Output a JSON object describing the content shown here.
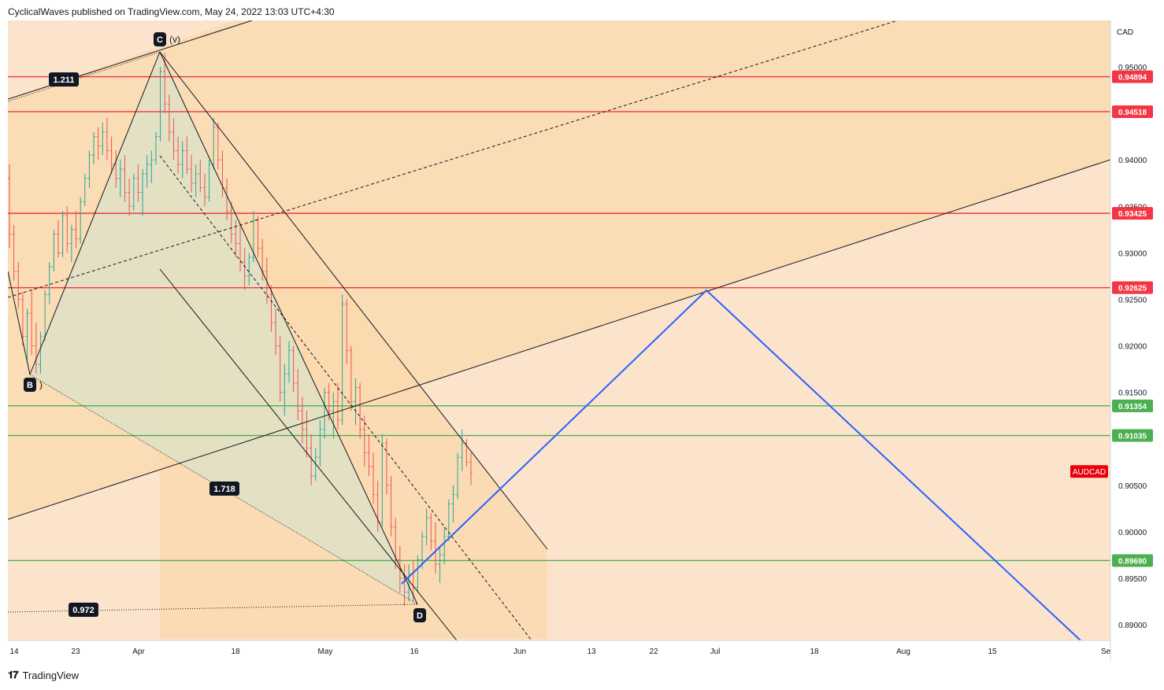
{
  "header": {
    "published_text": "CyclicalWaves published on TradingView.com, May 24, 2022 13:03 UTC+4:30"
  },
  "footer": {
    "brand": "TradingView"
  },
  "chart_data": {
    "type": "candlestick",
    "symbol": "AUDCAD",
    "currency": "CAD",
    "ylim": [
      0.887,
      0.9545
    ],
    "y_ticks": [
      0.95,
      0.94,
      0.935,
      0.93,
      0.925,
      0.92,
      0.915,
      0.905,
      0.9,
      0.895,
      0.89
    ],
    "x_ticks": [
      "14",
      "23",
      "Apr",
      "18",
      "May",
      "16",
      "Jun",
      "13",
      "22",
      "Jul",
      "18",
      "Aug",
      "15",
      "Se"
    ],
    "price_levels": [
      {
        "value": 0.94894,
        "label": "0.94894",
        "color": "#f23645"
      },
      {
        "value": 0.94518,
        "label": "0.94518",
        "color": "#f23645"
      },
      {
        "value": 0.93425,
        "label": "0.93425",
        "color": "#f23645"
      },
      {
        "value": 0.92625,
        "label": "0.92625",
        "color": "#f23645"
      },
      {
        "value": 0.91354,
        "label": "0.91354",
        "color": "#4caf50"
      },
      {
        "value": 0.91035,
        "label": "0.91035",
        "color": "#4caf50"
      },
      {
        "value": 0.8969,
        "label": "0.89690",
        "color": "#4caf50"
      }
    ],
    "symbol_price": 0.9064,
    "pattern_points": [
      {
        "label": "B",
        "note": ")"
      },
      {
        "label": "C",
        "note": "(v)"
      },
      {
        "label": "D",
        "note": ""
      }
    ],
    "fib_ratios": [
      "1.211",
      "1.718",
      "0.972"
    ],
    "projection_color": "#2962ff",
    "background_colors": {
      "light": "#fce4cc",
      "band": "#fad9ae",
      "triangle": "#dfe1c5"
    },
    "candles": [
      [
        0.938,
        0.9395,
        0.9305,
        0.932
      ],
      [
        0.932,
        0.933,
        0.927,
        0.928
      ],
      [
        0.928,
        0.929,
        0.924,
        0.925
      ],
      [
        0.925,
        0.9258,
        0.92,
        0.921
      ],
      [
        0.921,
        0.924,
        0.9185,
        0.9235
      ],
      [
        0.9235,
        0.926,
        0.919,
        0.92
      ],
      [
        0.92,
        0.9225,
        0.917,
        0.918
      ],
      [
        0.918,
        0.9215,
        0.917,
        0.921
      ],
      [
        0.921,
        0.926,
        0.9205,
        0.9255
      ],
      [
        0.9255,
        0.929,
        0.9245,
        0.9285
      ],
      [
        0.9285,
        0.9325,
        0.928,
        0.932
      ],
      [
        0.932,
        0.9335,
        0.9295,
        0.93
      ],
      [
        0.93,
        0.9345,
        0.9295,
        0.934
      ],
      [
        0.934,
        0.935,
        0.93,
        0.931
      ],
      [
        0.931,
        0.933,
        0.929,
        0.9325
      ],
      [
        0.9325,
        0.9345,
        0.9305,
        0.9315
      ],
      [
        0.9315,
        0.936,
        0.931,
        0.9355
      ],
      [
        0.9355,
        0.9385,
        0.935,
        0.938
      ],
      [
        0.938,
        0.941,
        0.937,
        0.9405
      ],
      [
        0.9405,
        0.943,
        0.9395,
        0.9425
      ],
      [
        0.9425,
        0.9435,
        0.94,
        0.9415
      ],
      [
        0.9415,
        0.944,
        0.9405,
        0.943
      ],
      [
        0.943,
        0.9445,
        0.94,
        0.941
      ],
      [
        0.941,
        0.9425,
        0.9385,
        0.9395
      ],
      [
        0.9395,
        0.941,
        0.937,
        0.938
      ],
      [
        0.938,
        0.94,
        0.936,
        0.939
      ],
      [
        0.939,
        0.9405,
        0.9355,
        0.9365
      ],
      [
        0.9365,
        0.938,
        0.934,
        0.935
      ],
      [
        0.935,
        0.9385,
        0.9345,
        0.938
      ],
      [
        0.938,
        0.9395,
        0.9355,
        0.9365
      ],
      [
        0.9365,
        0.939,
        0.934,
        0.9385
      ],
      [
        0.9385,
        0.9405,
        0.937,
        0.9395
      ],
      [
        0.9395,
        0.941,
        0.9375,
        0.94
      ],
      [
        0.94,
        0.943,
        0.9395,
        0.9425
      ],
      [
        0.9425,
        0.95,
        0.942,
        0.9495
      ],
      [
        0.9495,
        0.9515,
        0.945,
        0.946
      ],
      [
        0.946,
        0.947,
        0.942,
        0.943
      ],
      [
        0.943,
        0.9445,
        0.94,
        0.941
      ],
      [
        0.941,
        0.9425,
        0.9385,
        0.9395
      ],
      [
        0.9395,
        0.942,
        0.938,
        0.941
      ],
      [
        0.941,
        0.9425,
        0.9385,
        0.939
      ],
      [
        0.939,
        0.9405,
        0.9365,
        0.9375
      ],
      [
        0.9375,
        0.9395,
        0.936,
        0.9385
      ],
      [
        0.9385,
        0.94,
        0.9365,
        0.937
      ],
      [
        0.937,
        0.9385,
        0.935,
        0.936
      ],
      [
        0.936,
        0.94,
        0.9355,
        0.9395
      ],
      [
        0.9395,
        0.9445,
        0.939,
        0.9435
      ],
      [
        0.9435,
        0.944,
        0.939,
        0.94
      ],
      [
        0.94,
        0.941,
        0.936,
        0.937
      ],
      [
        0.937,
        0.938,
        0.9335,
        0.9345
      ],
      [
        0.9345,
        0.9355,
        0.931,
        0.932
      ],
      [
        0.932,
        0.9335,
        0.9295,
        0.931
      ],
      [
        0.931,
        0.933,
        0.928,
        0.929
      ],
      [
        0.929,
        0.9305,
        0.926,
        0.9275
      ],
      [
        0.9275,
        0.93,
        0.9265,
        0.9295
      ],
      [
        0.9295,
        0.9345,
        0.929,
        0.9335
      ],
      [
        0.9335,
        0.934,
        0.9295,
        0.9305
      ],
      [
        0.9305,
        0.9315,
        0.927,
        0.928
      ],
      [
        0.928,
        0.9295,
        0.9245,
        0.9255
      ],
      [
        0.9255,
        0.9265,
        0.9215,
        0.9225
      ],
      [
        0.9225,
        0.924,
        0.919,
        0.92
      ],
      [
        0.92,
        0.921,
        0.914,
        0.915
      ],
      [
        0.915,
        0.918,
        0.9125,
        0.917
      ],
      [
        0.917,
        0.9205,
        0.916,
        0.9195
      ],
      [
        0.9195,
        0.92,
        0.915,
        0.916
      ],
      [
        0.916,
        0.9175,
        0.912,
        0.913
      ],
      [
        0.913,
        0.9145,
        0.9095,
        0.911
      ],
      [
        0.911,
        0.913,
        0.908,
        0.909
      ],
      [
        0.909,
        0.9105,
        0.905,
        0.906
      ],
      [
        0.906,
        0.909,
        0.9055,
        0.908
      ],
      [
        0.908,
        0.912,
        0.907,
        0.911
      ],
      [
        0.911,
        0.9155,
        0.91,
        0.915
      ],
      [
        0.915,
        0.916,
        0.912,
        0.913
      ],
      [
        0.913,
        0.915,
        0.91,
        0.914
      ],
      [
        0.914,
        0.916,
        0.911,
        0.912
      ],
      [
        0.912,
        0.9255,
        0.9115,
        0.9245
      ],
      [
        0.9245,
        0.925,
        0.918,
        0.9195
      ],
      [
        0.9195,
        0.92,
        0.913,
        0.914
      ],
      [
        0.914,
        0.9165,
        0.9115,
        0.9155
      ],
      [
        0.9155,
        0.916,
        0.91,
        0.911
      ],
      [
        0.911,
        0.9125,
        0.907,
        0.9085
      ],
      [
        0.9085,
        0.9105,
        0.906,
        0.907
      ],
      [
        0.907,
        0.9085,
        0.903,
        0.904
      ],
      [
        0.904,
        0.9055,
        0.9,
        0.901
      ],
      [
        0.901,
        0.9105,
        0.9005,
        0.9095
      ],
      [
        0.9095,
        0.91,
        0.904,
        0.905
      ],
      [
        0.905,
        0.906,
        0.8995,
        0.9005
      ],
      [
        0.9005,
        0.9015,
        0.896,
        0.897
      ],
      [
        0.897,
        0.8985,
        0.8935,
        0.895
      ],
      [
        0.895,
        0.8965,
        0.892,
        0.8935
      ],
      [
        0.8935,
        0.8965,
        0.8925,
        0.8955
      ],
      [
        0.8955,
        0.897,
        0.8925,
        0.894
      ],
      [
        0.894,
        0.8975,
        0.8935,
        0.897
      ],
      [
        0.897,
        0.9,
        0.896,
        0.8995
      ],
      [
        0.8995,
        0.9025,
        0.8985,
        0.9015
      ],
      [
        0.9015,
        0.902,
        0.898,
        0.899
      ],
      [
        0.899,
        0.901,
        0.8955,
        0.8965
      ],
      [
        0.8965,
        0.8985,
        0.8945,
        0.8975
      ],
      [
        0.8975,
        0.9005,
        0.8965,
        0.8995
      ],
      [
        0.8995,
        0.9035,
        0.899,
        0.903
      ],
      [
        0.903,
        0.905,
        0.901,
        0.904
      ],
      [
        0.904,
        0.9085,
        0.9035,
        0.908
      ],
      [
        0.908,
        0.911,
        0.9065,
        0.9095
      ],
      [
        0.9095,
        0.91,
        0.907,
        0.9075
      ],
      [
        0.9075,
        0.9085,
        0.905,
        0.9064
      ]
    ]
  }
}
